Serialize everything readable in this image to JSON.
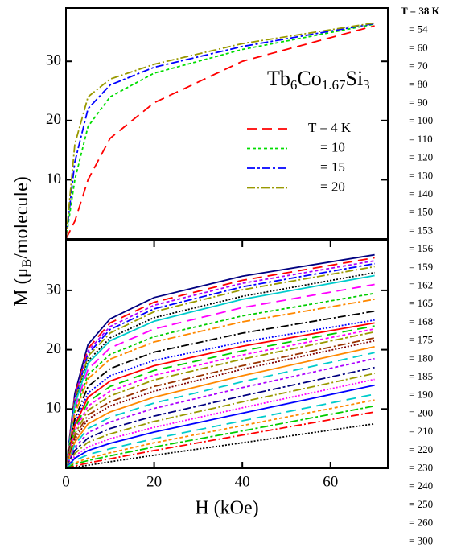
{
  "chart_data": [
    {
      "type": "line",
      "annotation": [
        "Tb",
        "6",
        "Co",
        "1.67",
        "Si",
        "3"
      ],
      "x": [
        0,
        2,
        5,
        10,
        20,
        40,
        70
      ],
      "xlim": [
        0,
        73
      ],
      "ylim": [
        0,
        39
      ],
      "yticks": [
        10,
        20,
        30
      ],
      "series": [
        {
          "name": "T = 4 K",
          "color": "#ff0000",
          "values": [
            0,
            3,
            10,
            17,
            23,
            30,
            36
          ]
        },
        {
          "name": "= 10",
          "color": "#00dd00",
          "values": [
            0,
            10,
            19,
            24,
            28,
            32,
            36.3
          ]
        },
        {
          "name": "= 15",
          "color": "#0000ff",
          "values": [
            0,
            13,
            22,
            26,
            29,
            32.5,
            36.4
          ]
        },
        {
          "name": "= 20",
          "color": "#999900",
          "values": [
            0,
            16,
            24,
            27,
            29.5,
            33,
            36.5
          ]
        }
      ]
    },
    {
      "type": "line",
      "xlabel": "H (kOe)",
      "ylabel": [
        "M (μ",
        "B",
        "/molecule)"
      ],
      "x": [
        0,
        2,
        5,
        10,
        20,
        40,
        70
      ],
      "xlim": [
        0,
        73
      ],
      "ylim": [
        0,
        38.4
      ],
      "xticks": [
        0,
        20,
        40,
        60
      ],
      "yticks": [
        10,
        20,
        30
      ],
      "series": [
        {
          "name": "T = 38 K",
          "color": "#000080",
          "values": [
            0,
            12.6,
            20.9,
            25.2,
            28.8,
            32.4,
            36
          ]
        },
        {
          "name": "= 54",
          "color": "#ff0000",
          "values": [
            0,
            12.2,
            20.2,
            24.5,
            28.0,
            31.7,
            35.5
          ]
        },
        {
          "name": "= 60",
          "color": "#aa00ff",
          "values": [
            0,
            11.9,
            19.8,
            23.9,
            27.5,
            31.2,
            35
          ]
        },
        {
          "name": "= 70",
          "color": "#0000ff",
          "values": [
            0,
            11.6,
            19.3,
            23.4,
            26.9,
            30.6,
            34.5
          ]
        },
        {
          "name": "= 80",
          "color": "#999900",
          "values": [
            0,
            11.4,
            18.9,
            22.8,
            26.4,
            30.1,
            34
          ]
        },
        {
          "name": "= 90",
          "color": "#000000",
          "values": [
            0,
            10.9,
            18.1,
            22.0,
            25.4,
            29.0,
            33
          ]
        },
        {
          "name": "= 100",
          "color": "#00cccc",
          "values": [
            0,
            10.7,
            17.7,
            21.5,
            24.8,
            28.5,
            32.5
          ]
        },
        {
          "name": "= 110",
          "color": "#ff00ff",
          "values": [
            0,
            10.0,
            16.7,
            20.3,
            23.5,
            27.1,
            31
          ]
        },
        {
          "name": "= 120",
          "color": "#00cc00",
          "values": [
            0,
            9.5,
            15.8,
            19.2,
            22.2,
            25.7,
            29.5
          ]
        },
        {
          "name": "= 130",
          "color": "#ff8800",
          "values": [
            0,
            9.1,
            15.1,
            18.4,
            21.3,
            24.7,
            28.5
          ]
        },
        {
          "name": "= 140",
          "color": "#000000",
          "values": [
            0,
            8.3,
            13.8,
            16.8,
            19.6,
            22.8,
            26.5
          ]
        },
        {
          "name": "= 150",
          "color": "#0000ff",
          "values": [
            0,
            7.6,
            12.7,
            15.6,
            18.2,
            21.3,
            25
          ]
        },
        {
          "name": "= 153",
          "color": "#ff0000",
          "values": [
            0,
            7.2,
            12.0,
            14.7,
            17.3,
            20.6,
            24.5
          ]
        },
        {
          "name": "= 156",
          "color": "#00cc00",
          "values": [
            0,
            6.7,
            11.2,
            13.8,
            16.5,
            19.8,
            24
          ]
        },
        {
          "name": "= 159",
          "color": "#ff00ff",
          "values": [
            0,
            6.3,
            10.5,
            13.0,
            15.7,
            19.1,
            23.5
          ]
        },
        {
          "name": "= 162",
          "color": "#999900",
          "values": [
            0,
            5.8,
            9.8,
            12.2,
            14.9,
            18.4,
            23
          ]
        },
        {
          "name": "= 165",
          "color": "#993300",
          "values": [
            0,
            5.3,
            9.0,
            11.2,
            13.8,
            17.3,
            22
          ]
        },
        {
          "name": "= 168",
          "color": "#800000",
          "values": [
            0,
            4.9,
            8.3,
            10.5,
            13.0,
            16.7,
            21.5
          ]
        },
        {
          "name": "= 175",
          "color": "#ff8800",
          "values": [
            0,
            4.4,
            7.5,
            9.5,
            12.0,
            15.6,
            20.5
          ]
        },
        {
          "name": "= 180",
          "color": "#00cccc",
          "values": [
            0,
            4.0,
            6.7,
            8.6,
            11.0,
            14.6,
            19.5
          ]
        },
        {
          "name": "= 185",
          "color": "#aa00ff",
          "values": [
            0,
            3.5,
            6.0,
            7.8,
            10.1,
            13.6,
            18.5
          ]
        },
        {
          "name": "= 190",
          "color": "#000080",
          "values": [
            0,
            3.0,
            5.1,
            6.7,
            8.8,
            12.2,
            17
          ]
        },
        {
          "name": "= 200",
          "color": "#999900",
          "values": [
            0,
            2.5,
            4.4,
            5.8,
            7.9,
            11.2,
            16
          ]
        },
        {
          "name": "= 210",
          "color": "#ff00ff",
          "values": [
            0,
            2.1,
            3.6,
            5.0,
            6.9,
            10.2,
            15
          ]
        },
        {
          "name": "= 220",
          "color": "#0000ff",
          "values": [
            0,
            1.7,
            3.0,
            4.2,
            6.1,
            9.3,
            14
          ]
        },
        {
          "name": "= 230",
          "color": "#00cccc",
          "values": [
            0,
            1.3,
            2.3,
            3.3,
            5.0,
            8.0,
            12.5
          ]
        },
        {
          "name": "= 240",
          "color": "#ff8800",
          "values": [
            0,
            0.9,
            1.7,
            2.6,
            4.3,
            7.2,
            11.5
          ]
        },
        {
          "name": "= 250",
          "color": "#00cc00",
          "values": [
            0,
            0.7,
            1.3,
            2.1,
            3.6,
            6.3,
            10.5
          ]
        },
        {
          "name": "= 260",
          "color": "#ff0000",
          "values": [
            0,
            0.4,
            0.9,
            1.6,
            3.0,
            5.6,
            9.5
          ]
        },
        {
          "name": "= 300",
          "color": "#000000",
          "values": [
            0,
            0.2,
            0.5,
            1.1,
            2.2,
            4.3,
            7.5
          ]
        }
      ]
    }
  ]
}
